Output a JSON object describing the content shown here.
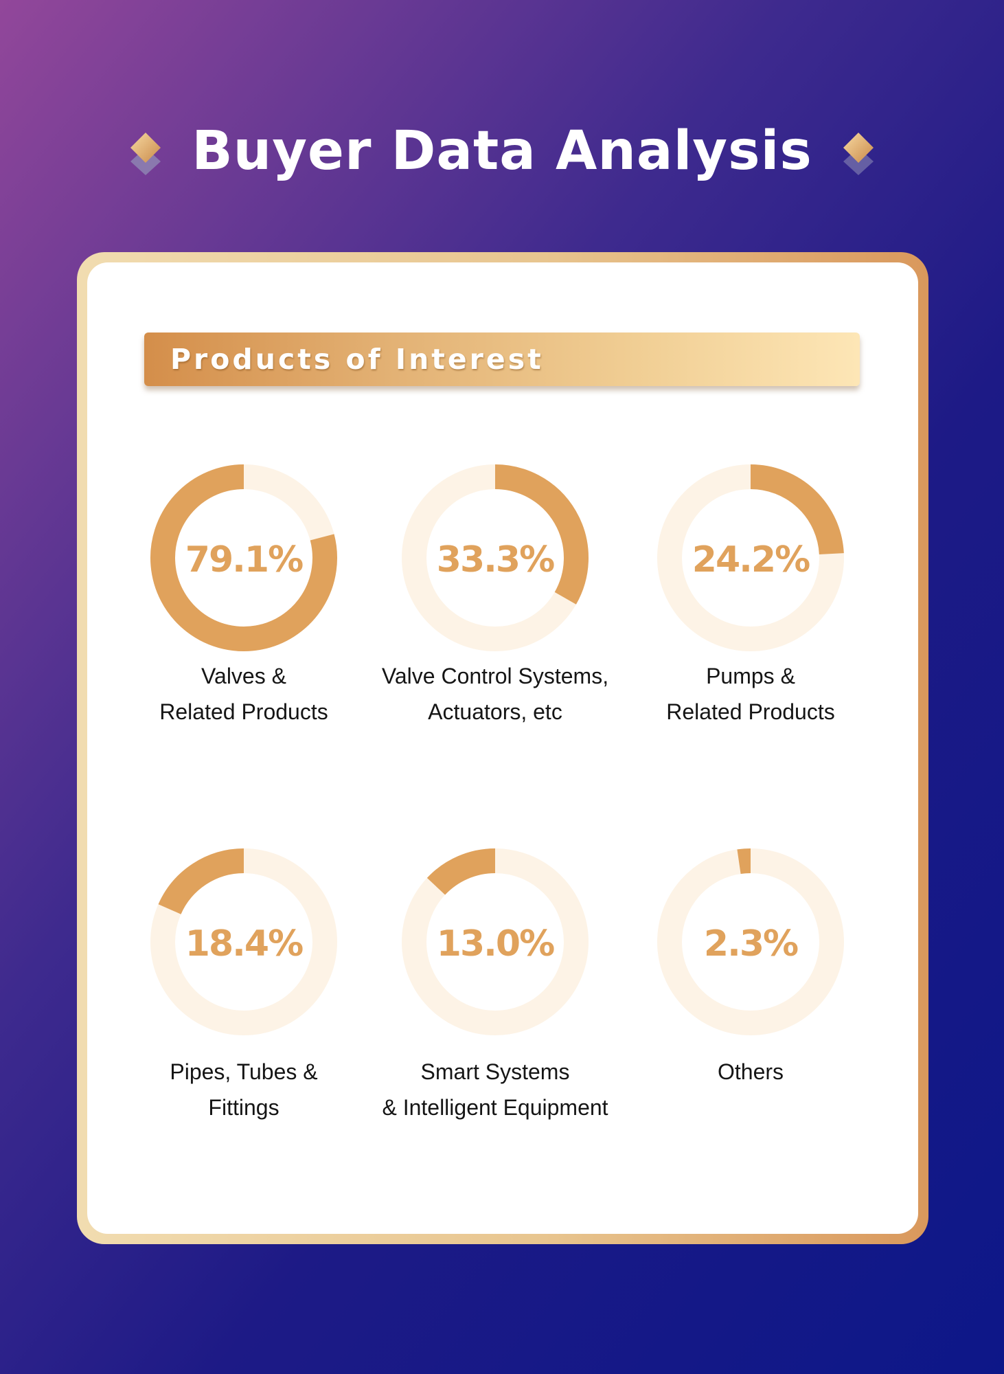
{
  "title": "Buyer Data Analysis",
  "section_title": "Products of Interest",
  "colors": {
    "accent": "#e0a25c",
    "track": "#fdf3e6",
    "bg_start": "#92479a",
    "bg_end": "#0d1788"
  },
  "chart_data": {
    "type": "pie",
    "title": "Products of Interest",
    "unit": "%",
    "items": [
      {
        "label": "79.1%",
        "value": 79.1,
        "name_lines": [
          "Valves &",
          "Related Products"
        ]
      },
      {
        "label": "33.3%",
        "value": 33.3,
        "name_lines": [
          "Valve Control Systems,",
          "Actuators, etc"
        ]
      },
      {
        "label": "24.2%",
        "value": 24.2,
        "name_lines": [
          "Pumps &",
          "Related Products"
        ]
      },
      {
        "label": "18.4%",
        "value": 18.4,
        "name_lines": [
          "Pipes, Tubes &",
          "Fittings"
        ]
      },
      {
        "label": "13.0%",
        "value": 13.0,
        "name_lines": [
          "Smart Systems",
          "& Intelligent Equipment"
        ]
      },
      {
        "label": "2.3%",
        "value": 2.3,
        "name_lines": [
          "Others"
        ]
      }
    ]
  }
}
